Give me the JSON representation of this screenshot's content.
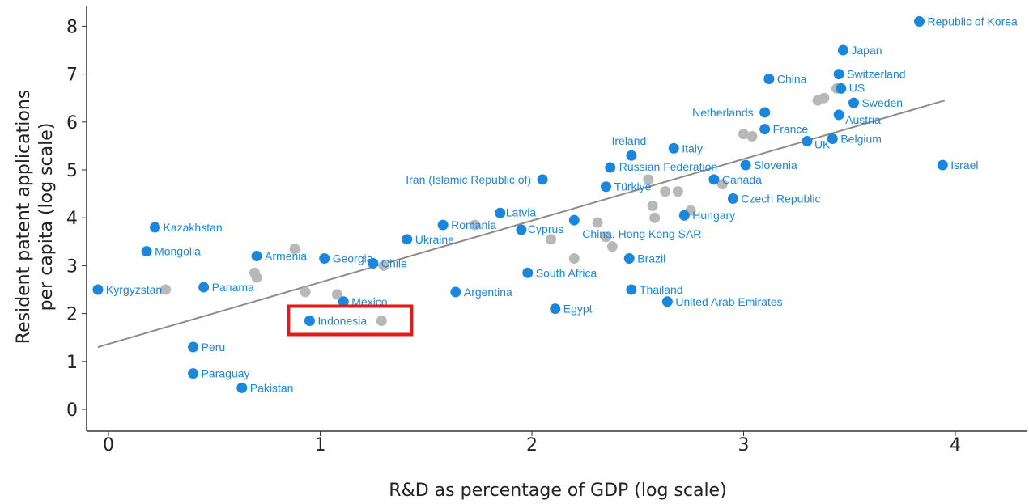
{
  "chart_data": {
    "type": "scatter",
    "xlabel": "R&D as percentage of GDP (log scale)",
    "ylabel": [
      "Resident patent applications",
      "per capita (log scale)"
    ],
    "xlim": [
      -0.1,
      4.35
    ],
    "ylim": [
      -0.4,
      8.5
    ],
    "x_ticks": [
      0,
      1,
      2,
      3,
      4
    ],
    "y_ticks": [
      0,
      1,
      2,
      3,
      4,
      5,
      6,
      7,
      8
    ],
    "grid": false,
    "legend": "none",
    "colors": {
      "highlighted": "#1a86dc",
      "other": "#b8b8b8",
      "label": "#1a86dc",
      "trend": "#8c8c8c",
      "highlight_box": "#e01b1b"
    },
    "trendline": {
      "from": [
        -0.05,
        1.3
      ],
      "to": [
        3.95,
        6.45
      ]
    },
    "highlight": "Indonesia",
    "series": [
      {
        "points": [
          {
            "label": "Republic of Korea",
            "x": 3.83,
            "y": 8.1
          },
          {
            "label": "Japan",
            "x": 3.47,
            "y": 7.5
          },
          {
            "label": "Switzerland",
            "x": 3.45,
            "y": 7.0
          },
          {
            "label": "US",
            "x": 3.46,
            "y": 6.7
          },
          {
            "label": "China",
            "x": 3.12,
            "y": 6.9
          },
          {
            "label": "Sweden",
            "x": 3.52,
            "y": 6.4
          },
          {
            "label": "Netherlands",
            "x": 3.1,
            "y": 6.2
          },
          {
            "label": "Austria",
            "x": 3.45,
            "y": 6.15
          },
          {
            "label": "France",
            "x": 3.1,
            "y": 5.85
          },
          {
            "label": "Belgium",
            "x": 3.42,
            "y": 5.65
          },
          {
            "label": "UK",
            "x": 3.3,
            "y": 5.6
          },
          {
            "label": "Ireland",
            "x": 2.47,
            "y": 5.3
          },
          {
            "label": "Italy",
            "x": 2.67,
            "y": 5.45
          },
          {
            "label": "Israel",
            "x": 3.94,
            "y": 5.1
          },
          {
            "label": "Slovenia",
            "x": 3.01,
            "y": 5.1
          },
          {
            "label": "Russian Federation",
            "x": 2.37,
            "y": 5.05
          },
          {
            "label": "Iran (Islamic Republic of)",
            "x": 2.05,
            "y": 4.8
          },
          {
            "label": "Türkiye",
            "x": 2.35,
            "y": 4.65
          },
          {
            "label": "Canada",
            "x": 2.86,
            "y": 4.8
          },
          {
            "label": "Czech Republic",
            "x": 2.95,
            "y": 4.4
          },
          {
            "label": "Hungary",
            "x": 2.72,
            "y": 4.05
          },
          {
            "label": "Kazakhstan",
            "x": 0.22,
            "y": 3.8
          },
          {
            "label": "Latvia",
            "x": 1.85,
            "y": 4.1
          },
          {
            "label": "Romania",
            "x": 1.58,
            "y": 3.85
          },
          {
            "label": "Cyprus",
            "x": 1.95,
            "y": 3.75
          },
          {
            "label": "China, Hong Kong SAR",
            "x": 2.2,
            "y": 3.95
          },
          {
            "label": "Ukraine",
            "x": 1.41,
            "y": 3.55
          },
          {
            "label": "Mongolia",
            "x": 0.18,
            "y": 3.3
          },
          {
            "label": "Georgia",
            "x": 1.02,
            "y": 3.15
          },
          {
            "label": "Armenia",
            "x": 0.7,
            "y": 3.2
          },
          {
            "label": "Chile",
            "x": 1.25,
            "y": 3.05
          },
          {
            "label": "Brazil",
            "x": 2.46,
            "y": 3.15
          },
          {
            "label": "South Africa",
            "x": 1.98,
            "y": 2.85
          },
          {
            "label": "Kyrgyzstan",
            "x": -0.05,
            "y": 2.5
          },
          {
            "label": "Panama",
            "x": 0.45,
            "y": 2.55
          },
          {
            "label": "Argentina",
            "x": 1.64,
            "y": 2.45
          },
          {
            "label": "Thailand",
            "x": 2.47,
            "y": 2.5
          },
          {
            "label": "Mexico",
            "x": 1.11,
            "y": 2.25
          },
          {
            "label": "United Arab Emirates",
            "x": 2.64,
            "y": 2.25
          },
          {
            "label": "Egypt",
            "x": 2.11,
            "y": 2.1
          },
          {
            "label": "Indonesia",
            "x": 0.95,
            "y": 1.85
          },
          {
            "label": "Peru",
            "x": 0.4,
            "y": 1.3
          },
          {
            "label": "Paraguay",
            "x": 0.4,
            "y": 0.75
          },
          {
            "label": "Pakistan",
            "x": 0.63,
            "y": 0.45
          }
        ]
      },
      {
        "points": [
          {
            "x": 0.27,
            "y": 2.5
          },
          {
            "x": 0.7,
            "y": 2.75
          },
          {
            "x": 0.69,
            "y": 2.85
          },
          {
            "x": 0.88,
            "y": 3.35
          },
          {
            "x": 0.93,
            "y": 2.45
          },
          {
            "x": 1.08,
            "y": 2.4
          },
          {
            "x": 1.3,
            "y": 3.0
          },
          {
            "x": 1.29,
            "y": 1.85
          },
          {
            "x": 1.73,
            "y": 3.85
          },
          {
            "x": 2.09,
            "y": 3.55
          },
          {
            "x": 2.2,
            "y": 3.15
          },
          {
            "x": 2.31,
            "y": 3.9
          },
          {
            "x": 2.35,
            "y": 3.6
          },
          {
            "x": 2.38,
            "y": 3.4
          },
          {
            "x": 2.55,
            "y": 4.8
          },
          {
            "x": 2.57,
            "y": 4.25
          },
          {
            "x": 2.58,
            "y": 4.0
          },
          {
            "x": 2.63,
            "y": 4.55
          },
          {
            "x": 2.69,
            "y": 4.55
          },
          {
            "x": 2.75,
            "y": 4.15
          },
          {
            "x": 2.9,
            "y": 4.7
          },
          {
            "x": 3.0,
            "y": 5.75
          },
          {
            "x": 3.04,
            "y": 5.7
          },
          {
            "x": 3.35,
            "y": 6.45
          },
          {
            "x": 3.38,
            "y": 6.5
          },
          {
            "x": 3.44,
            "y": 6.7
          }
        ]
      }
    ]
  }
}
